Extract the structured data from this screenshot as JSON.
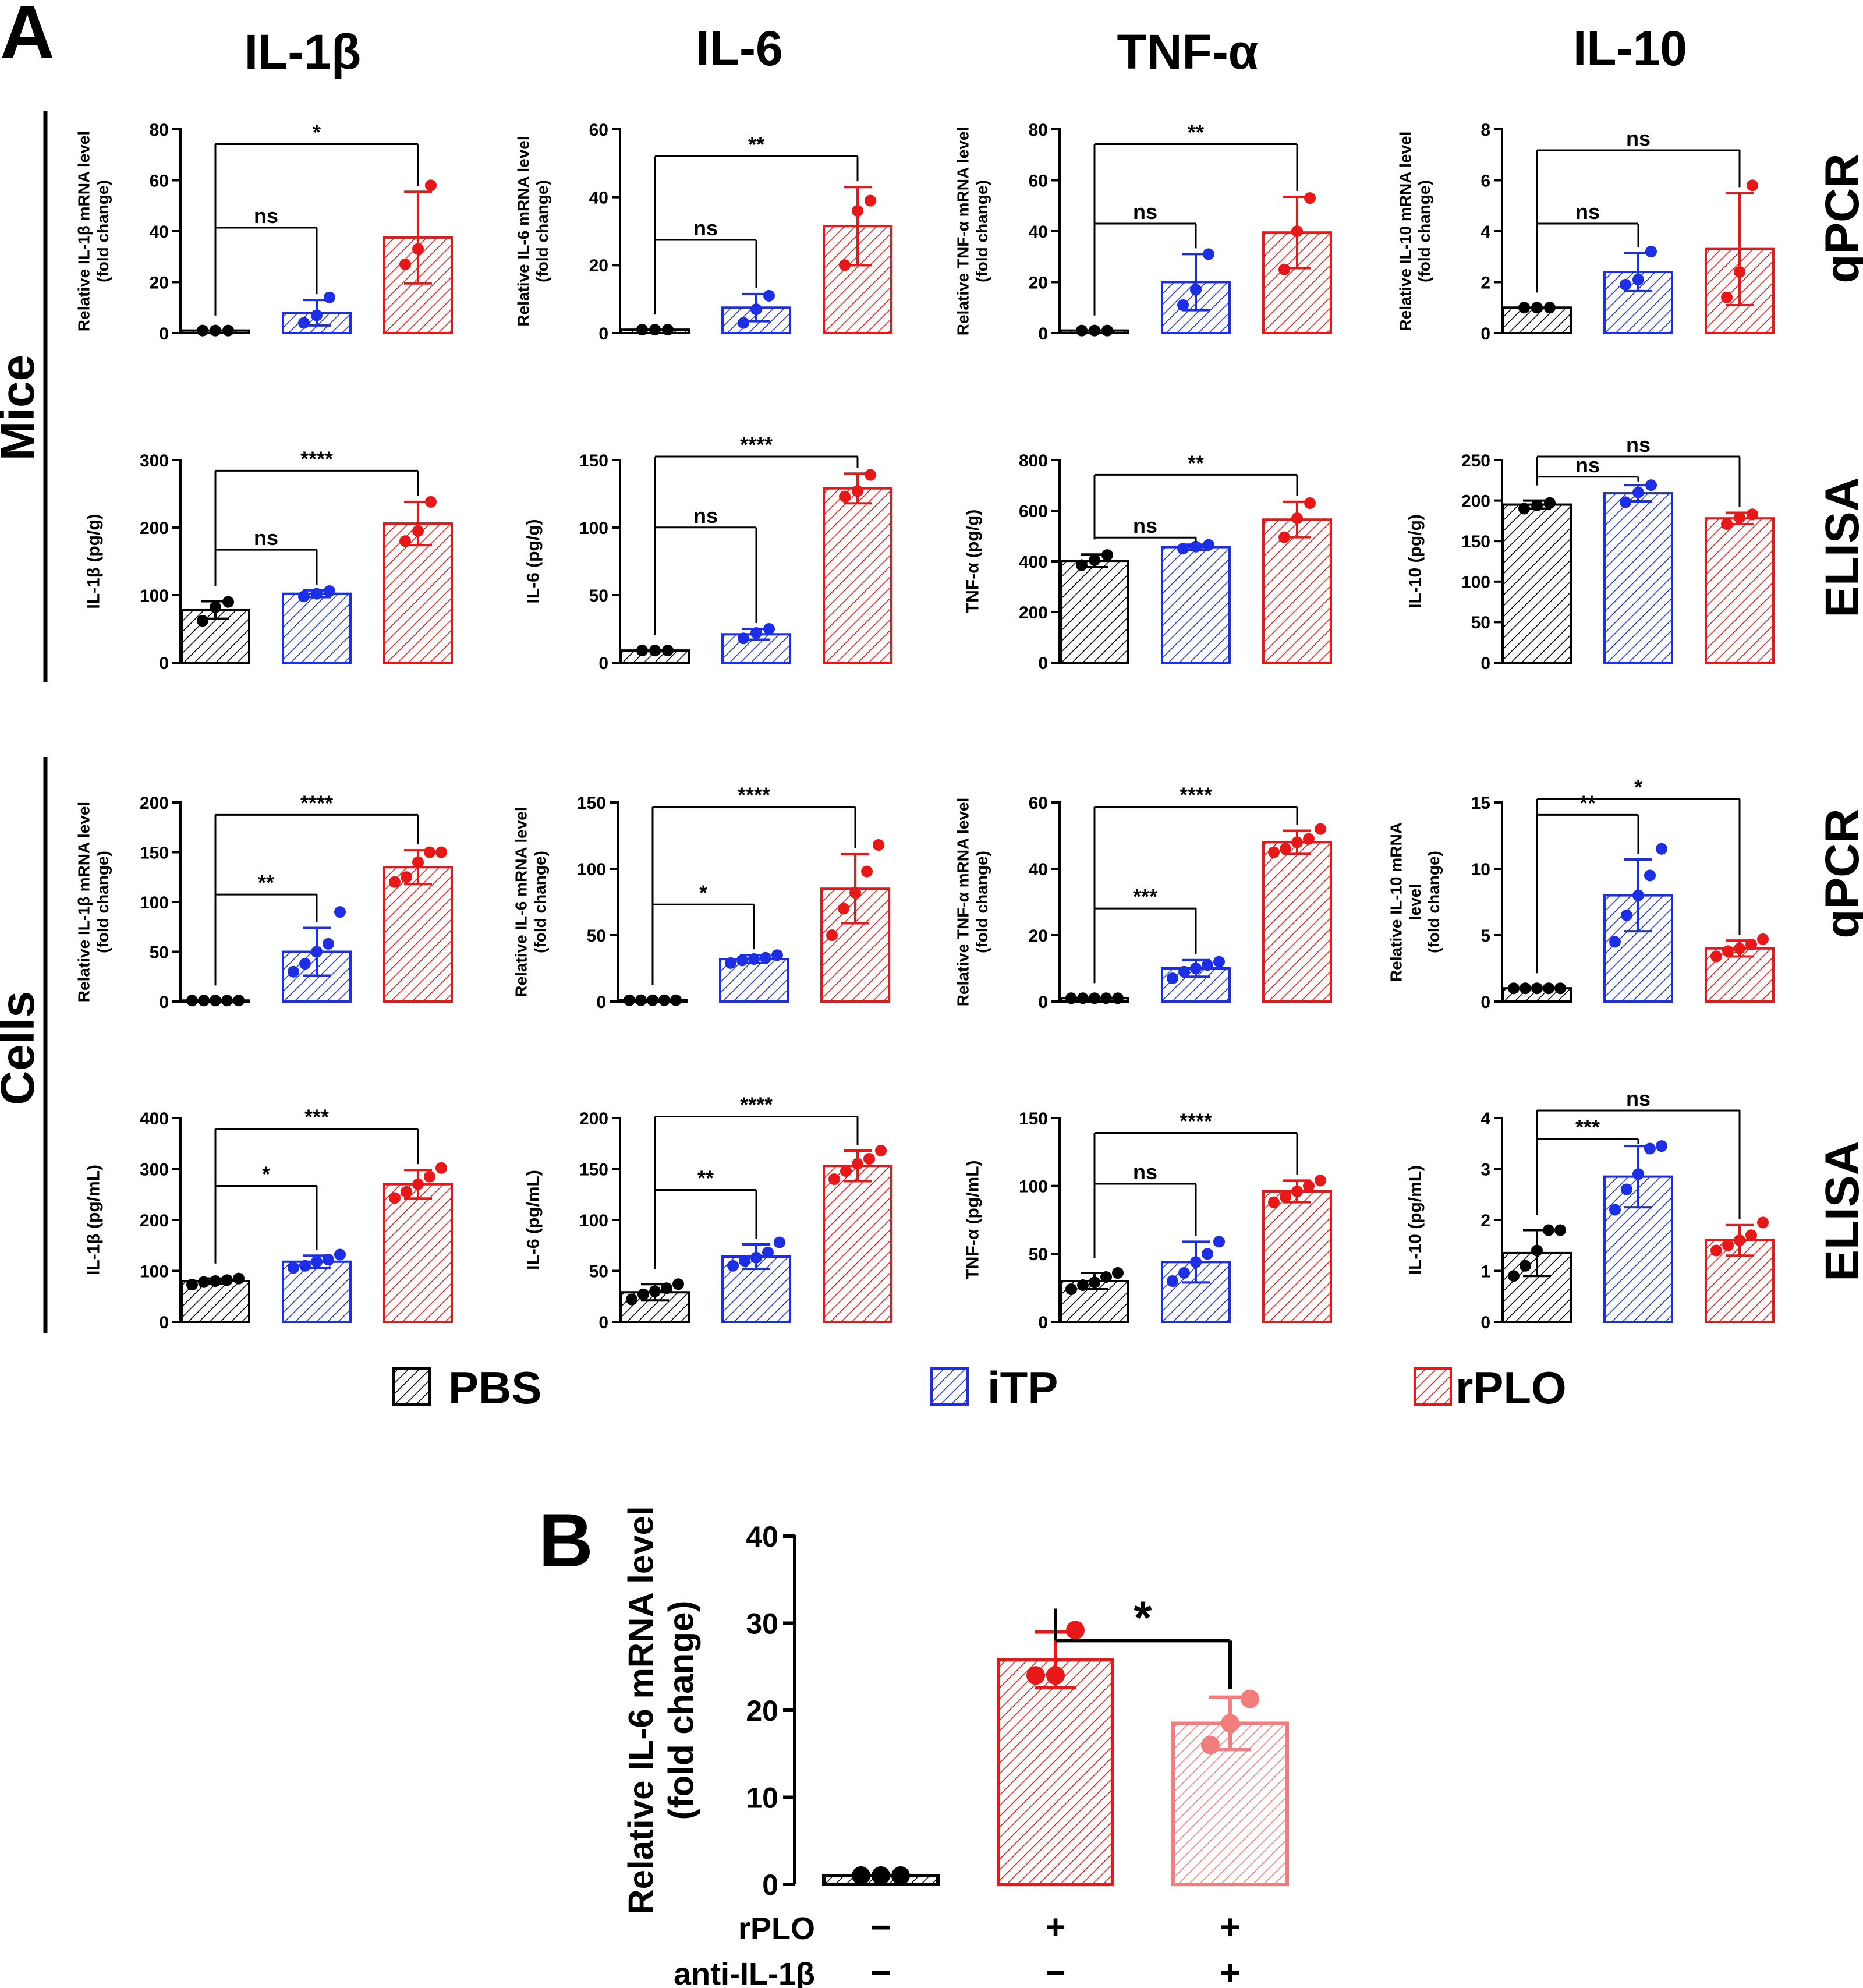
{
  "panel_labels": {
    "a": "A",
    "b": "B"
  },
  "column_titles": [
    "IL-1β",
    "IL-6",
    "TNF-α",
    "IL-10"
  ],
  "row_side_labels": [
    "Mice",
    "Cells"
  ],
  "row_assay_labels": [
    "qPCR",
    "ELISA",
    "qPCR",
    "ELISA"
  ],
  "legend": [
    {
      "label": "PBS",
      "color": "#000000"
    },
    {
      "label": "iTP",
      "color": "#1d2fe6"
    },
    {
      "label": "rPLO",
      "color": "#e81818"
    }
  ],
  "colors": {
    "PBS": "#000000",
    "iTP": "#1d2fe6",
    "rPLO": "#e81818",
    "rPLO_anti": "#f27d7d"
  },
  "chart_data": [
    {
      "type": "bar",
      "panel": "A",
      "row": 0,
      "col": 0,
      "ylabel": [
        "Relative IL-1β mRNA level",
        "(fold change)"
      ],
      "ylim": [
        0,
        80
      ],
      "yticks": [
        "0",
        "20",
        "40",
        "60",
        "80"
      ],
      "groups": [
        "PBS",
        "iTP",
        "rPLO"
      ],
      "values": [
        1,
        8,
        37.5
      ],
      "errors": [
        0,
        5,
        18
      ],
      "points": [
        [
          1,
          1,
          1
        ],
        [
          4,
          7,
          14
        ],
        [
          27,
          33,
          58
        ]
      ],
      "comparisons": [
        {
          "from": 0,
          "to": 1,
          "label": "ns",
          "level": 0.5
        },
        {
          "from": 0,
          "to": 2,
          "label": "*",
          "level": 0.91
        }
      ]
    },
    {
      "type": "bar",
      "panel": "A",
      "row": 0,
      "col": 1,
      "ylabel": [
        "Relative IL-6 mRNA level",
        "(fold change)"
      ],
      "ylim": [
        0,
        60
      ],
      "yticks": [
        "0",
        "20",
        "40",
        "60"
      ],
      "groups": [
        "PBS",
        "iTP",
        "rPLO"
      ],
      "values": [
        1,
        7.5,
        31.5
      ],
      "errors": [
        0,
        4,
        11.5
      ],
      "points": [
        [
          1,
          1,
          1
        ],
        [
          3,
          7,
          11
        ],
        [
          20,
          36,
          39
        ]
      ],
      "comparisons": [
        {
          "from": 0,
          "to": 1,
          "label": "ns",
          "level": 0.44
        },
        {
          "from": 0,
          "to": 2,
          "label": "**",
          "level": 0.85
        }
      ]
    },
    {
      "type": "bar",
      "panel": "A",
      "row": 0,
      "col": 2,
      "ylabel": [
        "Relative TNF-α mRNA level",
        "(fold change)"
      ],
      "ylim": [
        0,
        80
      ],
      "yticks": [
        "0",
        "20",
        "40",
        "60",
        "80"
      ],
      "groups": [
        "PBS",
        "iTP",
        "rPLO"
      ],
      "values": [
        1,
        20,
        39.5
      ],
      "errors": [
        0,
        11,
        14
      ],
      "points": [
        [
          1,
          1,
          1
        ],
        [
          11,
          17,
          31
        ],
        [
          25,
          40,
          53
        ]
      ],
      "comparisons": [
        {
          "from": 0,
          "to": 1,
          "label": "ns",
          "level": 0.52
        },
        {
          "from": 0,
          "to": 2,
          "label": "**",
          "level": 0.91
        }
      ]
    },
    {
      "type": "bar",
      "panel": "A",
      "row": 0,
      "col": 3,
      "ylabel": [
        "Relative IL-10 mRNA level",
        "(fold change)"
      ],
      "ylim": [
        0,
        8
      ],
      "yticks": [
        "0",
        "2",
        "4",
        "6",
        "8"
      ],
      "groups": [
        "PBS",
        "iTP",
        "rPLO"
      ],
      "values": [
        1,
        2.4,
        3.3
      ],
      "errors": [
        0,
        0.75,
        2.2
      ],
      "points": [
        [
          1,
          1,
          1
        ],
        [
          1.9,
          2.1,
          3.2
        ],
        [
          1.4,
          2.4,
          5.8
        ]
      ],
      "comparisons": [
        {
          "from": 0,
          "to": 1,
          "label": "ns",
          "level": 0.52
        },
        {
          "from": 0,
          "to": 2,
          "label": "ns",
          "level": 0.88
        }
      ]
    },
    {
      "type": "bar",
      "panel": "A",
      "row": 1,
      "col": 0,
      "ylabel": [
        "IL-1β (pg/g)"
      ],
      "ylim": [
        0,
        300
      ],
      "yticks": [
        "0",
        "100",
        "200",
        "300"
      ],
      "groups": [
        "PBS",
        "iTP",
        "rPLO"
      ],
      "values": [
        78,
        102,
        206
      ],
      "errors": [
        13,
        5,
        32
      ],
      "points": [
        [
          62,
          82,
          90
        ],
        [
          98,
          102,
          106
        ],
        [
          180,
          195,
          238
        ]
      ],
      "comparisons": [
        {
          "from": 0,
          "to": 1,
          "label": "ns",
          "level": 0.54
        },
        {
          "from": 0,
          "to": 2,
          "label": "****",
          "level": 0.93
        }
      ]
    },
    {
      "type": "bar",
      "panel": "A",
      "row": 1,
      "col": 1,
      "ylabel": [
        "IL-6 (pg/g)"
      ],
      "ylim": [
        0,
        150
      ],
      "yticks": [
        "0",
        "50",
        "100",
        "150"
      ],
      "groups": [
        "PBS",
        "iTP",
        "rPLO"
      ],
      "values": [
        9,
        21,
        129
      ],
      "errors": [
        0.5,
        4,
        11
      ],
      "points": [
        [
          9,
          9,
          9
        ],
        [
          18,
          22,
          25
        ],
        [
          123,
          127,
          139
        ]
      ],
      "comparisons": [
        {
          "from": 0,
          "to": 1,
          "label": "ns",
          "level": 0.65
        },
        {
          "from": 0,
          "to": 2,
          "label": "****",
          "level": 1.0
        }
      ]
    },
    {
      "type": "bar",
      "panel": "A",
      "row": 1,
      "col": 2,
      "ylabel": [
        "TNF-α (pg/g)"
      ],
      "ylim": [
        0,
        800
      ],
      "yticks": [
        "0",
        "200",
        "400",
        "600",
        "800"
      ],
      "groups": [
        "PBS",
        "iTP",
        "rPLO"
      ],
      "values": [
        402,
        456,
        565
      ],
      "errors": [
        25,
        10,
        70
      ],
      "points": [
        [
          385,
          405,
          425
        ],
        [
          450,
          458,
          465
        ],
        [
          495,
          570,
          630
        ]
      ],
      "comparisons": [
        {
          "from": 0,
          "to": 1,
          "label": "ns",
          "level": 0.6
        },
        {
          "from": 0,
          "to": 2,
          "label": "**",
          "level": 0.91
        }
      ]
    },
    {
      "type": "bar",
      "panel": "A",
      "row": 1,
      "col": 3,
      "ylabel": [
        "IL-10 (pg/g)"
      ],
      "ylim": [
        0,
        250
      ],
      "yticks": [
        "0",
        "50",
        "100",
        "150",
        "200",
        "250"
      ],
      "groups": [
        "PBS",
        "iTP",
        "rPLO"
      ],
      "values": [
        195,
        209,
        178
      ],
      "errors": [
        5,
        10,
        7
      ],
      "points": [
        [
          190,
          194,
          197
        ],
        [
          198,
          210,
          219
        ],
        [
          171,
          179,
          183
        ]
      ],
      "comparisons": [
        {
          "from": 0,
          "to": 1,
          "label": "ns",
          "level": 0.9
        },
        {
          "from": 0,
          "to": 2,
          "label": "ns",
          "level": 1.0
        }
      ]
    },
    {
      "type": "bar",
      "panel": "A",
      "row": 2,
      "col": 0,
      "ylabel": [
        "Relative IL-1β mRNA level",
        "(fold change)"
      ],
      "ylim": [
        0,
        200
      ],
      "yticks": [
        "0",
        "50",
        "100",
        "150",
        "200"
      ],
      "groups": [
        "PBS",
        "iTP",
        "rPLO"
      ],
      "values": [
        1,
        50,
        135
      ],
      "errors": [
        0,
        24,
        17
      ],
      "points": [
        [
          1,
          1,
          1,
          1,
          1
        ],
        [
          30,
          38,
          50,
          58,
          90
        ],
        [
          120,
          125,
          140,
          150,
          150
        ]
      ],
      "comparisons": [
        {
          "from": 0,
          "to": 1,
          "label": "**",
          "level": 0.52
        },
        {
          "from": 0,
          "to": 2,
          "label": "****",
          "level": 0.92
        }
      ]
    },
    {
      "type": "bar",
      "panel": "A",
      "row": 2,
      "col": 1,
      "ylabel": [
        "Relative IL-6 mRNA level",
        "(fold change)"
      ],
      "ylim": [
        0,
        150
      ],
      "yticks": [
        "0",
        "50",
        "100",
        "150"
      ],
      "groups": [
        "PBS",
        "iTP",
        "rPLO"
      ],
      "values": [
        1,
        32,
        85
      ],
      "errors": [
        0,
        3,
        26
      ],
      "points": [
        [
          1,
          1,
          1,
          1,
          1
        ],
        [
          29,
          31,
          32,
          33,
          35
        ],
        [
          50,
          70,
          82,
          98,
          118
        ]
      ],
      "comparisons": [
        {
          "from": 0,
          "to": 1,
          "label": "*",
          "level": 0.47
        },
        {
          "from": 0,
          "to": 2,
          "label": "****",
          "level": 0.96
        }
      ]
    },
    {
      "type": "bar",
      "panel": "A",
      "row": 2,
      "col": 2,
      "ylabel": [
        "Relative TNF-α mRNA level",
        "(fold change)"
      ],
      "ylim": [
        0,
        60
      ],
      "yticks": [
        "0",
        "20",
        "40",
        "60"
      ],
      "groups": [
        "PBS",
        "iTP",
        "rPLO"
      ],
      "values": [
        1,
        10,
        48
      ],
      "errors": [
        0,
        2.5,
        3.5
      ],
      "points": [
        [
          1,
          1,
          1,
          1,
          1
        ],
        [
          7,
          9,
          10,
          11,
          12
        ],
        [
          45,
          46,
          48,
          49,
          52
        ]
      ],
      "comparisons": [
        {
          "from": 0,
          "to": 1,
          "label": "***",
          "level": 0.45
        },
        {
          "from": 0,
          "to": 2,
          "label": "****",
          "level": 0.96
        }
      ]
    },
    {
      "type": "bar",
      "panel": "A",
      "row": 2,
      "col": 3,
      "ylabel": [
        "Relative IL-10 mRNA",
        "level",
        "(fold change)"
      ],
      "ylim": [
        0,
        15
      ],
      "yticks": [
        "0",
        "5",
        "10",
        "15"
      ],
      "groups": [
        "PBS",
        "iTP",
        "rPLO"
      ],
      "values": [
        1,
        8,
        4
      ],
      "errors": [
        0,
        2.7,
        0.6
      ],
      "points": [
        [
          1,
          1,
          1,
          1,
          1
        ],
        [
          4.5,
          6.5,
          8,
          9.5,
          11.5
        ],
        [
          3.4,
          3.8,
          4,
          4.3,
          4.7
        ]
      ],
      "comparisons": [
        {
          "from": 0,
          "to": 1,
          "label": "**",
          "level": 0.92
        },
        {
          "from": 0,
          "to": 2,
          "label": "*",
          "level": 1.0
        }
      ]
    },
    {
      "type": "bar",
      "panel": "A",
      "row": 3,
      "col": 0,
      "ylabel": [
        "IL-1β (pg/mL)"
      ],
      "ylim": [
        0,
        400
      ],
      "yticks": [
        "0",
        "100",
        "200",
        "300",
        "400"
      ],
      "groups": [
        "PBS",
        "iTP",
        "rPLO"
      ],
      "values": [
        80,
        118,
        270
      ],
      "errors": [
        5,
        12,
        28
      ],
      "points": [
        [
          73,
          78,
          80,
          82,
          85
        ],
        [
          106,
          110,
          118,
          122,
          132
        ],
        [
          243,
          255,
          270,
          285,
          302
        ]
      ],
      "comparisons": [
        {
          "from": 0,
          "to": 1,
          "label": "*",
          "level": 0.65
        },
        {
          "from": 0,
          "to": 2,
          "label": "***",
          "level": 0.93
        }
      ]
    },
    {
      "type": "bar",
      "panel": "A",
      "row": 3,
      "col": 1,
      "ylabel": [
        "IL-6 (pg/mL)"
      ],
      "ylim": [
        0,
        200
      ],
      "yticks": [
        "0",
        "50",
        "100",
        "150",
        "200"
      ],
      "groups": [
        "PBS",
        "iTP",
        "rPLO"
      ],
      "values": [
        29,
        64,
        153
      ],
      "errors": [
        8,
        12,
        15
      ],
      "points": [
        [
          22,
          27,
          30,
          33,
          37
        ],
        [
          55,
          60,
          63,
          68,
          78
        ],
        [
          140,
          148,
          155,
          160,
          168
        ]
      ],
      "comparisons": [
        {
          "from": 0,
          "to": 1,
          "label": "**",
          "level": 0.63
        },
        {
          "from": 0,
          "to": 2,
          "label": "****",
          "level": 0.99
        }
      ]
    },
    {
      "type": "bar",
      "panel": "A",
      "row": 3,
      "col": 2,
      "ylabel": [
        "TNF-α (pg/mL)"
      ],
      "ylim": [
        0,
        150
      ],
      "yticks": [
        "0",
        "50",
        "100",
        "150"
      ],
      "groups": [
        "PBS",
        "iTP",
        "rPLO"
      ],
      "values": [
        30,
        44,
        96
      ],
      "errors": [
        6,
        15,
        8
      ],
      "points": [
        [
          24,
          27,
          29,
          33,
          36
        ],
        [
          30,
          36,
          44,
          50,
          59
        ],
        [
          88,
          92,
          96,
          100,
          104
        ]
      ],
      "comparisons": [
        {
          "from": 0,
          "to": 1,
          "label": "ns",
          "level": 0.66
        },
        {
          "from": 0,
          "to": 2,
          "label": "****",
          "level": 0.91
        }
      ]
    },
    {
      "type": "bar",
      "panel": "A",
      "row": 3,
      "col": 3,
      "ylabel": [
        "IL-10 (pg/mL)"
      ],
      "ylim": [
        0,
        4
      ],
      "yticks": [
        "0",
        "1",
        "2",
        "3",
        "4"
      ],
      "groups": [
        "PBS",
        "iTP",
        "rPLO"
      ],
      "values": [
        1.35,
        2.85,
        1.6
      ],
      "errors": [
        0.45,
        0.6,
        0.3
      ],
      "points": [
        [
          0.9,
          1.1,
          1.4,
          1.8,
          1.8
        ],
        [
          2.2,
          2.6,
          2.9,
          3.4,
          3.45
        ],
        [
          1.4,
          1.5,
          1.6,
          1.7,
          1.95
        ]
      ],
      "comparisons": [
        {
          "from": 0,
          "to": 1,
          "label": "***",
          "level": 0.88
        },
        {
          "from": 0,
          "to": 2,
          "label": "ns",
          "level": 1.02
        }
      ]
    },
    {
      "type": "bar",
      "panel": "B",
      "ylabel": [
        "Relative IL-6 mRNA level",
        "(fold change)"
      ],
      "ylim": [
        0,
        40
      ],
      "yticks": [
        "0",
        "10",
        "20",
        "30",
        "40"
      ],
      "groups": [
        "PBS",
        "rPLO",
        "rPLO_anti"
      ],
      "values": [
        1,
        25.8,
        18.5
      ],
      "errors": [
        0,
        3.2,
        3
      ],
      "points": [
        [
          1,
          1,
          1
        ],
        [
          24,
          24,
          29.2
        ],
        [
          16,
          18.5,
          21.3
        ]
      ],
      "comparisons": [
        {
          "from": 1,
          "to": 2,
          "label": "*",
          "level": 0.7
        }
      ],
      "conditions": [
        {
          "label": "rPLO",
          "signs": [
            "−",
            "+",
            "+"
          ]
        },
        {
          "label": "anti-IL-1β",
          "signs": [
            "−",
            "−",
            "+"
          ]
        }
      ]
    }
  ]
}
